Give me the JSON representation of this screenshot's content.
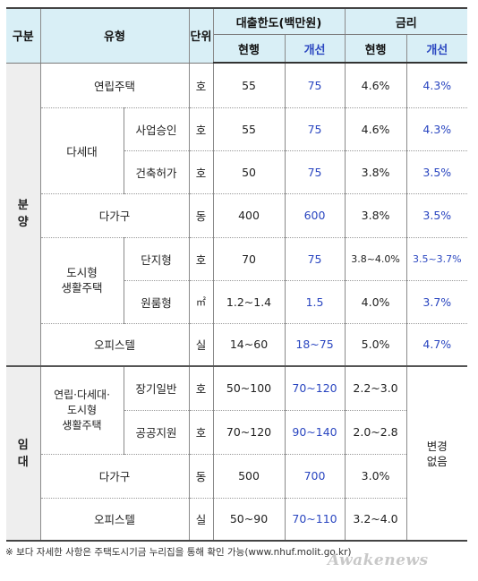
{
  "header": {
    "category": "구분",
    "type": "유형",
    "unit": "단위",
    "loan_limit": "대출한도(백만원)",
    "rate": "금리",
    "current": "현행",
    "improved": "개선"
  },
  "sections": {
    "bunyang": "분\n양",
    "imdae": "임\n대"
  },
  "rows": {
    "yeonrip": {
      "type": "연립주택",
      "unit": "호",
      "loan_cur": "55",
      "loan_new": "75",
      "rate_cur": "4.6%",
      "rate_new": "4.3%"
    },
    "dasede_group": "다세대",
    "dasede_approve": {
      "sub": "사업승인",
      "unit": "호",
      "loan_cur": "55",
      "loan_new": "75",
      "rate_cur": "4.6%",
      "rate_new": "4.3%"
    },
    "dasede_build": {
      "sub": "건축허가",
      "unit": "호",
      "loan_cur": "50",
      "loan_new": "75",
      "rate_cur": "3.8%",
      "rate_new": "3.5%"
    },
    "dagagu": {
      "type": "다가구",
      "unit": "동",
      "loan_cur": "400",
      "loan_new": "600",
      "rate_cur": "3.8%",
      "rate_new": "3.5%"
    },
    "urban_group": "도시형\n생활주택",
    "urban_danji": {
      "sub": "단지형",
      "unit": "호",
      "loan_cur": "70",
      "loan_new": "75",
      "rate_cur": "3.8~4.0%",
      "rate_new": "3.5~3.7%"
    },
    "urban_wonroom": {
      "sub": "원룸형",
      "unit": "㎡",
      "loan_cur": "1.2~1.4",
      "loan_new": "1.5",
      "rate_cur": "4.0%",
      "rate_new": "3.7%"
    },
    "officetel": {
      "type": "오피스텔",
      "unit": "실",
      "loan_cur": "14~60",
      "loan_new": "18~75",
      "rate_cur": "5.0%",
      "rate_new": "4.7%"
    },
    "rent_group": "연립·다세대·\n도시형\n생활주택",
    "rent_long": {
      "sub": "장기일반",
      "unit": "호",
      "loan_cur": "50~100",
      "loan_new": "70~120",
      "rate_cur": "2.2~3.0"
    },
    "rent_public": {
      "sub": "공공지원",
      "unit": "호",
      "loan_cur": "70~120",
      "loan_new": "90~140",
      "rate_cur": "2.0~2.8"
    },
    "rent_dagagu": {
      "type": "다가구",
      "unit": "동",
      "loan_cur": "500",
      "loan_new": "700",
      "rate_cur": "3.0%"
    },
    "rent_officetel": {
      "type": "오피스텔",
      "unit": "실",
      "loan_cur": "50~90",
      "loan_new": "70~110",
      "rate_cur": "3.2~4.0"
    },
    "no_change": "변경\n없음"
  },
  "footnote": "※ 보다 자세한 사항은 주택도시기금 누리집을 통해 확인 가능(www.nhuf.molit.go.kr)",
  "watermark": "Awakenews"
}
